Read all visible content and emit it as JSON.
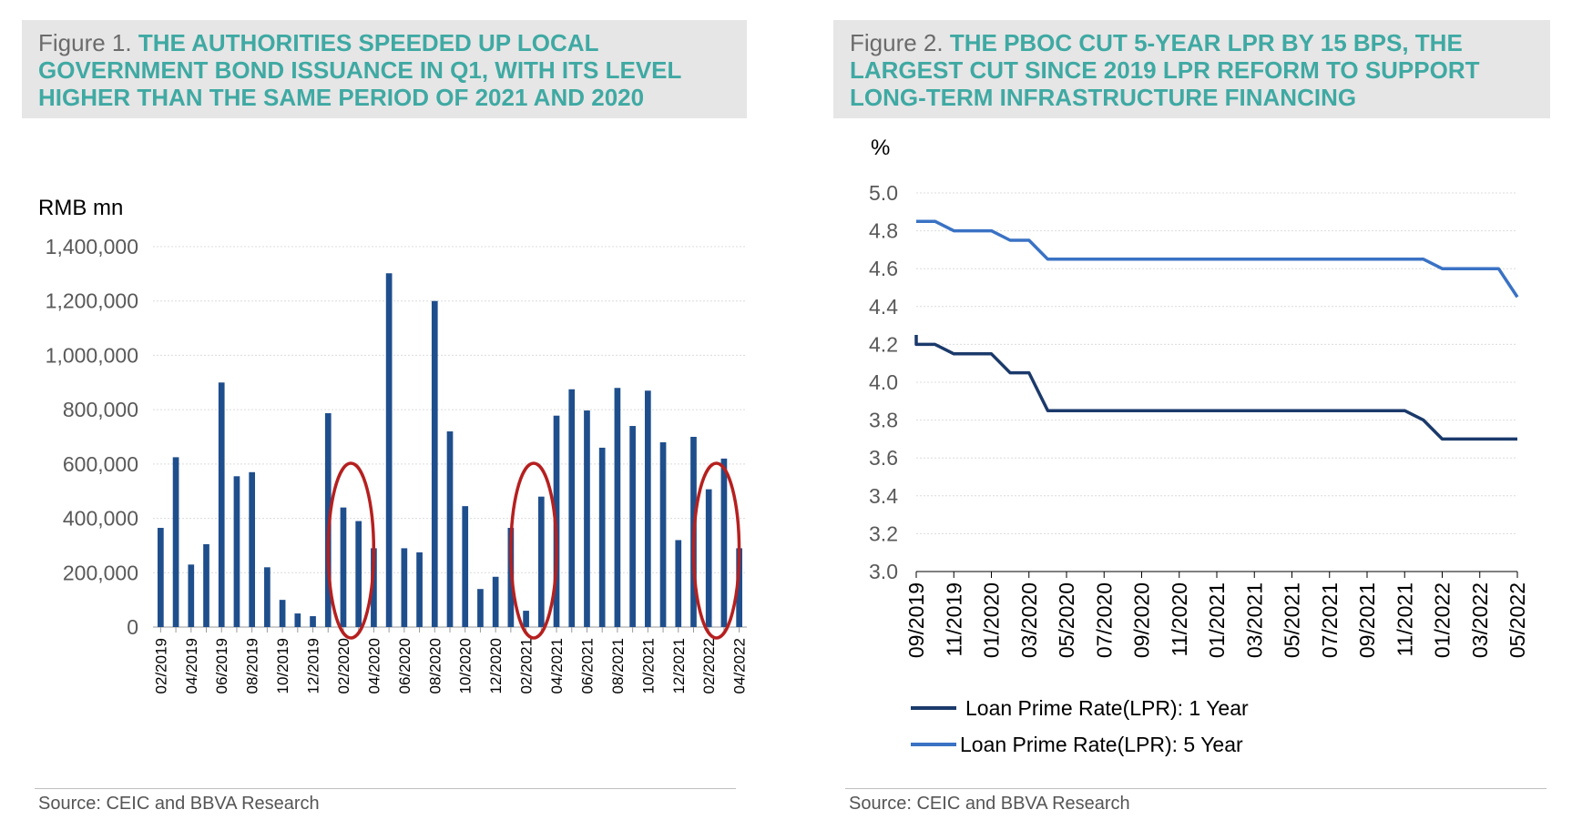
{
  "figure1": {
    "number": "Figure 1.",
    "title": "THE AUTHORITIES SPEEDED UP LOCAL GOVERNMENT BOND ISSUANCE IN Q1, WITH ITS LEVEL HIGHER THAN THE SAME PERIOD OF 2021 AND 2020",
    "source": "Source: CEIC and BBVA Research"
  },
  "figure2": {
    "number": "Figure 2.",
    "title": "THE PBOC CUT 5-YEAR LPR BY 15 BPS, THE LARGEST CUT SINCE 2019 LPR REFORM TO SUPPORT LONG-TERM INFRASTRUCTURE FINANCING",
    "source": "Source: CEIC and BBVA Research"
  },
  "colors": {
    "bar": "#1f4e8c",
    "highlight_circle": "#b5201f",
    "lpr_1y": "#1b3a6b",
    "lpr_5y": "#3a72c4",
    "axis_unit_blue": "#2e5fa8",
    "title_teal": "#3fa9a3"
  },
  "chart_data": [
    {
      "type": "bar",
      "ylabel": "RMB mn",
      "ylim": [
        0,
        1400000
      ],
      "yticks": [
        0,
        200000,
        400000,
        600000,
        800000,
        1000000,
        1200000,
        1400000
      ],
      "ytick_labels": [
        "0",
        "200,000",
        "400,000",
        "600,000",
        "800,000",
        "1,000,000",
        "1,200,000",
        "1,400,000"
      ],
      "categories": [
        "02/2019",
        "03/2019",
        "04/2019",
        "05/2019",
        "06/2019",
        "07/2019",
        "08/2019",
        "09/2019",
        "10/2019",
        "11/2019",
        "12/2019",
        "01/2020",
        "02/2020",
        "03/2020",
        "04/2020",
        "05/2020",
        "06/2020",
        "07/2020",
        "08/2020",
        "09/2020",
        "10/2020",
        "11/2020",
        "12/2020",
        "01/2021",
        "02/2021",
        "03/2021",
        "04/2021",
        "05/2021",
        "06/2021",
        "07/2021",
        "08/2021",
        "09/2021",
        "10/2021",
        "11/2021",
        "12/2021",
        "01/2022",
        "02/2022",
        "03/2022",
        "04/2022"
      ],
      "xtick_labels": [
        "02/2019",
        "04/2019",
        "06/2019",
        "08/2019",
        "10/2019",
        "12/2019",
        "02/2020",
        "04/2020",
        "06/2020",
        "08/2020",
        "10/2020",
        "12/2020",
        "02/2021",
        "04/2021",
        "06/2021",
        "08/2021",
        "10/2021",
        "12/2021",
        "02/2022",
        "04/2022"
      ],
      "values": [
        365000,
        625000,
        230000,
        305000,
        900000,
        555000,
        570000,
        220000,
        100000,
        50000,
        40000,
        787000,
        440000,
        390000,
        290000,
        1302000,
        290000,
        275000,
        1200000,
        720000,
        445000,
        140000,
        185000,
        365000,
        60000,
        480000,
        778000,
        875000,
        797000,
        660000,
        880000,
        740000,
        870000,
        680000,
        320000,
        700000,
        507000,
        620000,
        290000
      ],
      "highlighted_periods": [
        [
          "02/2020",
          "03/2020"
        ],
        [
          "02/2021",
          "03/2021"
        ],
        [
          "02/2022",
          "03/2022"
        ]
      ],
      "grid": true,
      "legend": "none"
    },
    {
      "type": "line",
      "unit_label": "%",
      "ylim": [
        3.0,
        5.0
      ],
      "yticks": [
        3.0,
        3.2,
        3.4,
        3.6,
        3.8,
        4.0,
        4.2,
        4.4,
        4.6,
        4.8,
        5.0
      ],
      "ytick_labels": [
        "3.0",
        "3.2",
        "3.4",
        "3.6",
        "3.8",
        "4.0",
        "4.2",
        "4.4",
        "4.6",
        "4.8",
        "5.0"
      ],
      "xlim": [
        "09/2019",
        "05/2022"
      ],
      "xtick_labels": [
        "09/2019",
        "11/2019",
        "01/2020",
        "03/2020",
        "05/2020",
        "07/2020",
        "09/2020",
        "11/2020",
        "01/2021",
        "03/2021",
        "05/2021",
        "07/2021",
        "09/2021",
        "11/2021",
        "01/2022",
        "03/2022",
        "05/2022"
      ],
      "series": [
        {
          "name": "Loan Prime Rate(LPR): 1 Year",
          "points": [
            [
              "08/2019",
              4.25
            ],
            [
              "09/2019",
              4.2
            ],
            [
              "10/2019",
              4.2
            ],
            [
              "11/2019",
              4.15
            ],
            [
              "12/2019",
              4.15
            ],
            [
              "01/2020",
              4.15
            ],
            [
              "02/2020",
              4.05
            ],
            [
              "03/2020",
              4.05
            ],
            [
              "04/2020",
              3.85
            ],
            [
              "05/2020",
              3.85
            ],
            [
              "06/2020",
              3.85
            ],
            [
              "07/2020",
              3.85
            ],
            [
              "08/2020",
              3.85
            ],
            [
              "09/2020",
              3.85
            ],
            [
              "10/2020",
              3.85
            ],
            [
              "11/2020",
              3.85
            ],
            [
              "12/2020",
              3.85
            ],
            [
              "01/2021",
              3.85
            ],
            [
              "02/2021",
              3.85
            ],
            [
              "03/2021",
              3.85
            ],
            [
              "04/2021",
              3.85
            ],
            [
              "05/2021",
              3.85
            ],
            [
              "06/2021",
              3.85
            ],
            [
              "07/2021",
              3.85
            ],
            [
              "08/2021",
              3.85
            ],
            [
              "09/2021",
              3.85
            ],
            [
              "10/2021",
              3.85
            ],
            [
              "11/2021",
              3.85
            ],
            [
              "12/2021",
              3.8
            ],
            [
              "01/2022",
              3.7
            ],
            [
              "02/2022",
              3.7
            ],
            [
              "03/2022",
              3.7
            ],
            [
              "04/2022",
              3.7
            ],
            [
              "05/2022",
              3.7
            ]
          ]
        },
        {
          "name": "Loan Prime Rate(LPR): 5 Year",
          "points": [
            [
              "08/2019",
              4.85
            ],
            [
              "09/2019",
              4.85
            ],
            [
              "10/2019",
              4.85
            ],
            [
              "11/2019",
              4.8
            ],
            [
              "12/2019",
              4.8
            ],
            [
              "01/2020",
              4.8
            ],
            [
              "02/2020",
              4.75
            ],
            [
              "03/2020",
              4.75
            ],
            [
              "04/2020",
              4.65
            ],
            [
              "05/2020",
              4.65
            ],
            [
              "06/2020",
              4.65
            ],
            [
              "07/2020",
              4.65
            ],
            [
              "08/2020",
              4.65
            ],
            [
              "09/2020",
              4.65
            ],
            [
              "10/2020",
              4.65
            ],
            [
              "11/2020",
              4.65
            ],
            [
              "12/2020",
              4.65
            ],
            [
              "01/2021",
              4.65
            ],
            [
              "02/2021",
              4.65
            ],
            [
              "03/2021",
              4.65
            ],
            [
              "04/2021",
              4.65
            ],
            [
              "05/2021",
              4.65
            ],
            [
              "06/2021",
              4.65
            ],
            [
              "07/2021",
              4.65
            ],
            [
              "08/2021",
              4.65
            ],
            [
              "09/2021",
              4.65
            ],
            [
              "10/2021",
              4.65
            ],
            [
              "11/2021",
              4.65
            ],
            [
              "12/2021",
              4.65
            ],
            [
              "01/2022",
              4.6
            ],
            [
              "02/2022",
              4.6
            ],
            [
              "03/2022",
              4.6
            ],
            [
              "04/2022",
              4.6
            ],
            [
              "05/2022",
              4.45
            ]
          ]
        }
      ],
      "grid": true,
      "legend": "bottom"
    }
  ]
}
